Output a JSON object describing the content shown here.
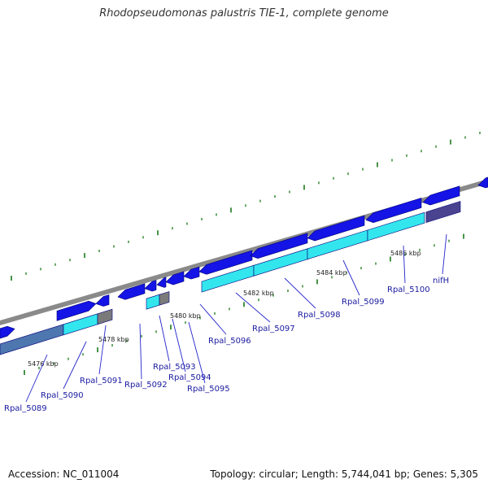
{
  "title": "Rhodopseudomonas palustris TIE-1, complete genome",
  "footer": {
    "accession": "Accession: NC_011004",
    "summary": "Topology: circular; Length: 5,744,041 bp; Genes: 5,305"
  },
  "colors": {
    "backbone": "#8a8a8a",
    "cds": "#1414e6",
    "cds_outline": "#00007a",
    "ortholog": "#33e6ee",
    "pseudo": "#7a7a7a",
    "steel": "#4e77b0",
    "navy": "#4a4490",
    "tick": "#1a7a1a",
    "label_line": "#2424cc"
  },
  "scale_labels": [
    "5476 kbp",
    "5478 kbp",
    "5480 kbp",
    "5482 kbp",
    "5484 kbp",
    "5486 kbp"
  ],
  "genes": [
    "Rpal_5089",
    "Rpal_5090",
    "Rpal_5091",
    "Rpal_5092",
    "Rpal_5093",
    "Rpal_5094",
    "Rpal_5095",
    "Rpal_5096",
    "Rpal_5097",
    "Rpal_5098",
    "Rpal_5099",
    "Rpal_5100",
    "nifH"
  ]
}
